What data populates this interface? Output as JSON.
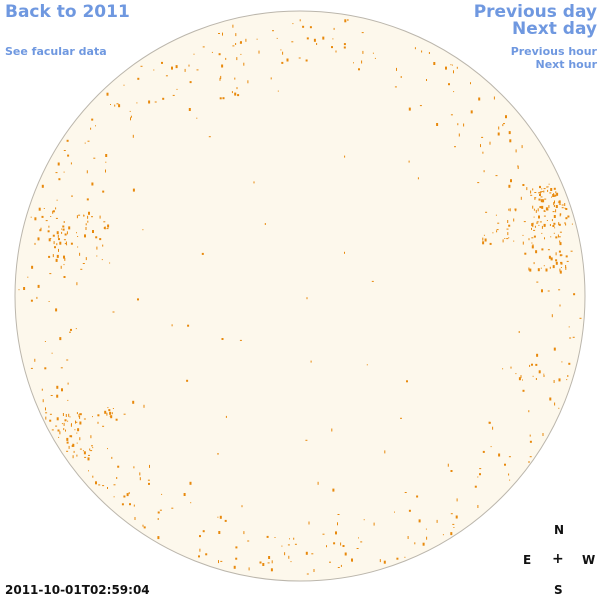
{
  "nav": {
    "back_label": "Back to 2011",
    "facular_label": "See facular data",
    "previous_day_label": "Previous day",
    "next_day_label": "Next day",
    "previous_hour_label": "Previous hour",
    "next_hour_label": "Next hour"
  },
  "image": {
    "timestamp": "2011-10-01T02:59:04",
    "disk_fill_color": "#fdf8ec",
    "disk_border_color": "#bbb6ac",
    "feature_color": "#e8890c"
  },
  "compass": {
    "north": "N",
    "east": "E",
    "west": "W",
    "south": "S",
    "center": "+"
  }
}
